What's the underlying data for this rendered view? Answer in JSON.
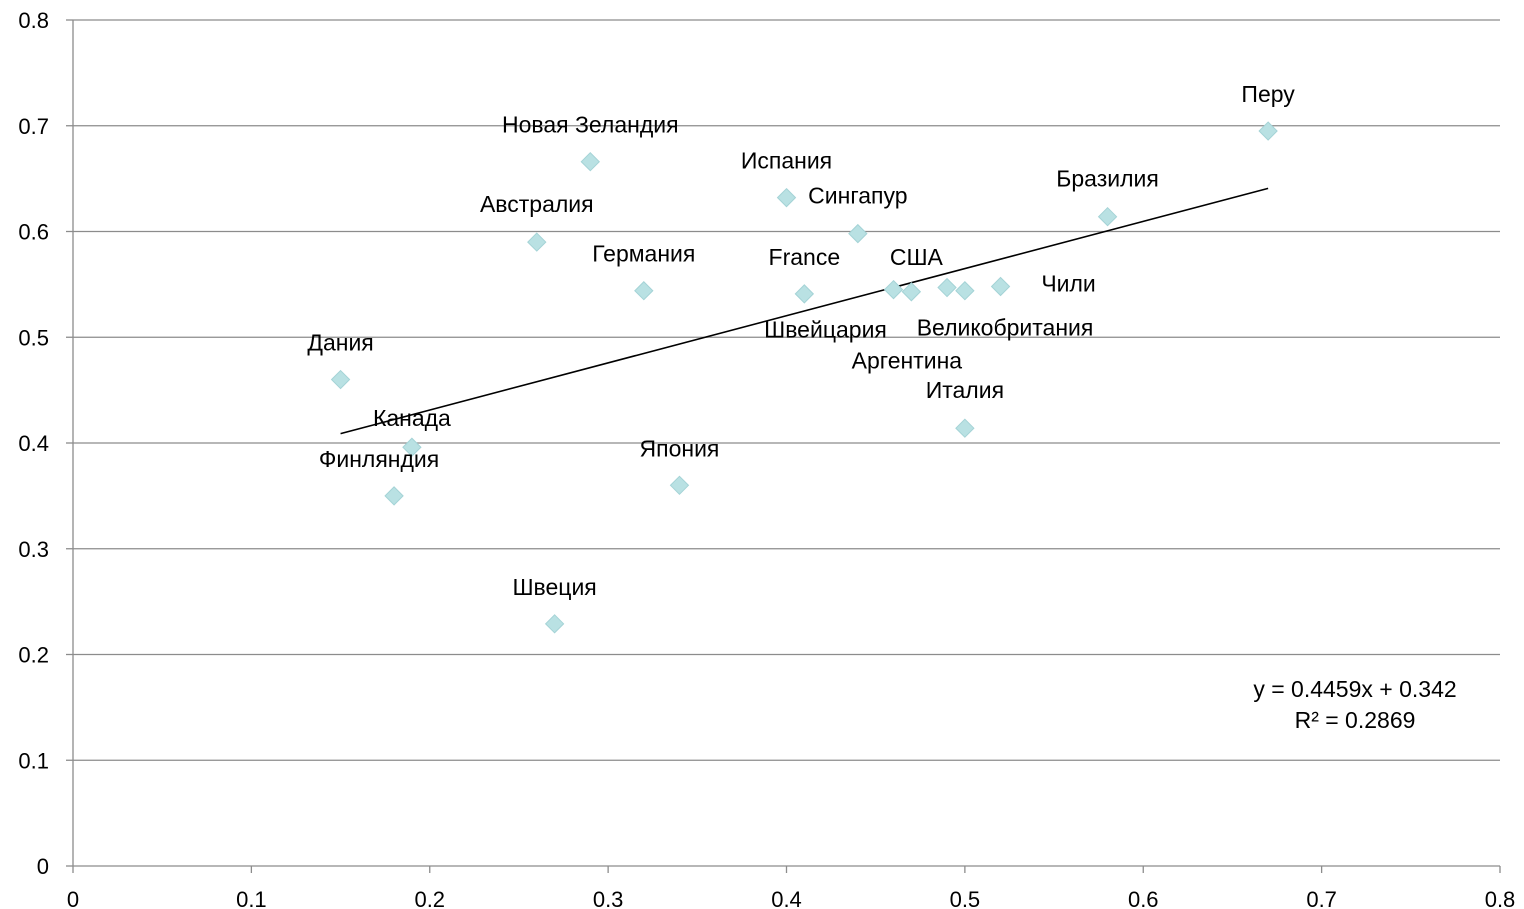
{
  "chart_data": {
    "type": "scatter",
    "title": "",
    "xlabel": "",
    "ylabel": "",
    "xlim": [
      0,
      0.8
    ],
    "ylim": [
      0,
      0.8
    ],
    "x_ticks": [
      "0",
      "0.1",
      "0.2",
      "0.3",
      "0.4",
      "0.5",
      "0.6",
      "0.7",
      "0.8"
    ],
    "y_ticks": [
      "0",
      "0.1",
      "0.2",
      "0.3",
      "0.4",
      "0.5",
      "0.6",
      "0.7",
      "0.8"
    ],
    "grid": "horizontal",
    "marker_color": "#b9e1e3",
    "points": [
      {
        "label": "Дания",
        "x": 0.15,
        "y": 0.46
      },
      {
        "label": "Финляндия",
        "x": 0.18,
        "y": 0.35
      },
      {
        "label": "Канада",
        "x": 0.19,
        "y": 0.396
      },
      {
        "label": "Австралия",
        "x": 0.26,
        "y": 0.59
      },
      {
        "label": "Швеция",
        "x": 0.27,
        "y": 0.229
      },
      {
        "label": "Новая Зеландия",
        "x": 0.29,
        "y": 0.666
      },
      {
        "label": "Германия",
        "x": 0.32,
        "y": 0.544
      },
      {
        "label": "Япония",
        "x": 0.34,
        "y": 0.36
      },
      {
        "label": "Испания",
        "x": 0.4,
        "y": 0.632
      },
      {
        "label": "France",
        "x": 0.41,
        "y": 0.541
      },
      {
        "label": "Сингапур",
        "x": 0.44,
        "y": 0.598
      },
      {
        "label": "Швейцария",
        "x": 0.46,
        "y": 0.545
      },
      {
        "label": "США",
        "x": 0.47,
        "y": 0.543
      },
      {
        "label": "Великобритания",
        "x": 0.49,
        "y": 0.547
      },
      {
        "label": "Аргентина",
        "x": 0.5,
        "y": 0.544
      },
      {
        "label": "Италия",
        "x": 0.5,
        "y": 0.414
      },
      {
        "label": "Чили",
        "x": 0.52,
        "y": 0.548
      },
      {
        "label": "Бразилия",
        "x": 0.58,
        "y": 0.614
      },
      {
        "label": "Перу",
        "x": 0.67,
        "y": 0.695
      }
    ],
    "trendline": {
      "slope": 0.4459,
      "intercept": 0.342,
      "x_range": [
        0.15,
        0.67
      ],
      "equation": "y = 0.4459x + 0.342",
      "r_squared": "R² = 0.2869"
    }
  }
}
